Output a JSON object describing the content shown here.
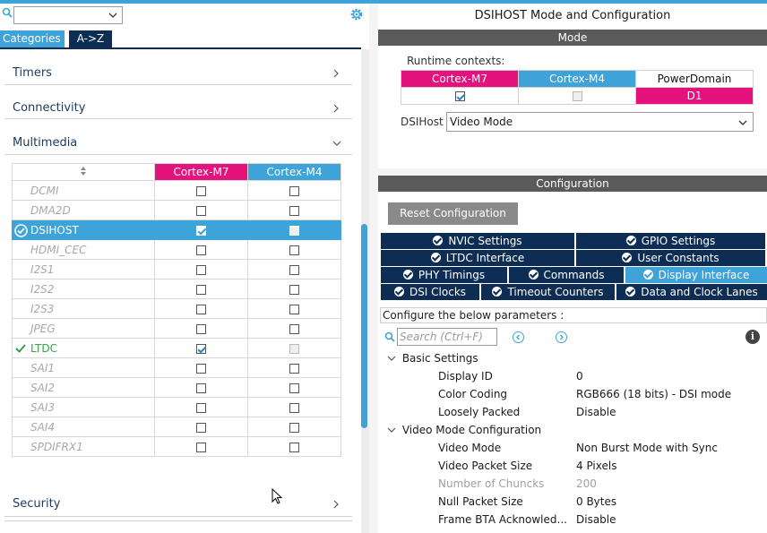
{
  "toolbar": {
    "category_tab": "Categories",
    "az_tab": "A->Z"
  },
  "categories": [
    {
      "label": "Timers",
      "expanded": false
    },
    {
      "label": "Connectivity",
      "expanded": false
    },
    {
      "label": "Multimedia",
      "expanded": true
    },
    {
      "label": "Security",
      "expanded": false
    }
  ],
  "ip_table": {
    "columns": [
      "",
      "Cortex-M7",
      "Cortex-M4"
    ],
    "rows": [
      {
        "name": "DCMI",
        "m7": false,
        "m4": false,
        "state": "disabled"
      },
      {
        "name": "DMA2D",
        "m7": false,
        "m4": false,
        "state": "disabled"
      },
      {
        "name": "DSIHOST",
        "m7": true,
        "m4": false,
        "state": "selected"
      },
      {
        "name": "HDMI_CEC",
        "m7": false,
        "m4": false,
        "state": "disabled"
      },
      {
        "name": "I2S1",
        "m7": false,
        "m4": false,
        "state": "disabled"
      },
      {
        "name": "I2S2",
        "m7": false,
        "m4": false,
        "state": "disabled"
      },
      {
        "name": "I2S3",
        "m7": false,
        "m4": false,
        "state": "disabled"
      },
      {
        "name": "JPEG",
        "m7": false,
        "m4": false,
        "state": "disabled"
      },
      {
        "name": "LTDC",
        "m7": true,
        "m4": false,
        "state": "enabled"
      },
      {
        "name": "SAI1",
        "m7": false,
        "m4": false,
        "state": "disabled"
      },
      {
        "name": "SAI2",
        "m7": false,
        "m4": false,
        "state": "disabled"
      },
      {
        "name": "SAI3",
        "m7": false,
        "m4": false,
        "state": "disabled"
      },
      {
        "name": "SAI4",
        "m7": false,
        "m4": false,
        "state": "disabled"
      },
      {
        "name": "SPDIFRX1",
        "m7": false,
        "m4": false,
        "state": "disabled"
      }
    ]
  },
  "right": {
    "title": "DSIHOST Mode and Configuration",
    "mode_header": "Mode",
    "runtime_label": "Runtime contexts:",
    "runtime_cols": [
      "Cortex-M7",
      "Cortex-M4",
      "PowerDomain"
    ],
    "runtime_m7": true,
    "runtime_m4": false,
    "power_domain": "D1",
    "dsihost_label": "DSIHost",
    "dsihost_value": "Video Mode",
    "config_header": "Configuration",
    "reset_button": "Reset Configuration",
    "tabs_row1": [
      "NVIC Settings",
      "GPIO Settings"
    ],
    "tabs_row2": [
      "LTDC Interface",
      "User Constants"
    ],
    "tabs_row3": [
      "PHY Timings",
      "Commands",
      "Display Interface"
    ],
    "tabs_row4": [
      "DSI Clocks",
      "Timeout Counters",
      "Data and Clock Lanes"
    ],
    "active_tab": "Display Interface",
    "configure_text": "Configure the below parameters :",
    "search_placeholder": "Search (Ctrl+F)",
    "basic_settings": "Basic Settings",
    "video_mode_config": "Video Mode Configuration",
    "params": [
      {
        "name": "Display ID",
        "value": "0",
        "dim": false
      },
      {
        "name": "Color Coding",
        "value": "RGB666 (18 bits) - DSI mode",
        "dim": false
      },
      {
        "name": "Loosely Packed",
        "value": "Disable",
        "dim": false
      },
      {
        "name": "Video Mode",
        "value": "Non Burst Mode with Sync",
        "dim": false
      },
      {
        "name": "Video Packet Size",
        "value": "4 Pixels",
        "dim": false
      },
      {
        "name": "Number of Chuncks",
        "value": "200",
        "dim": true
      },
      {
        "name": "Null Packet Size",
        "value": "0 Bytes",
        "dim": false
      },
      {
        "name": "Frame BTA Acknowled...",
        "value": "Disable",
        "dim": false
      }
    ]
  },
  "colors": {
    "accent": "#3ea3d8",
    "m7": "#e3127d",
    "navy": "#0d2d55",
    "ok": "#33a24a"
  }
}
